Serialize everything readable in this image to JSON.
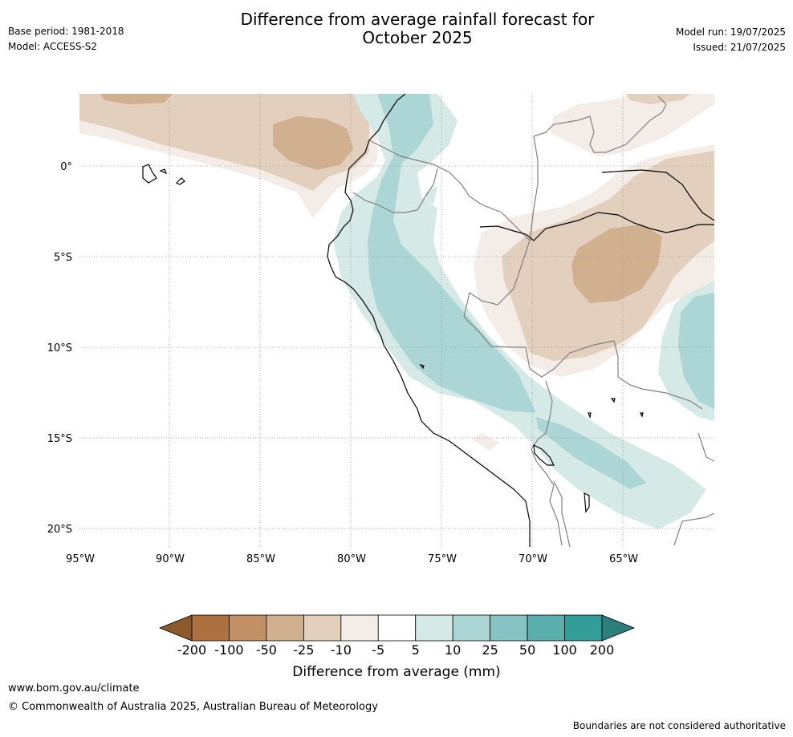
{
  "header": {
    "title_line1": "Difference from average rainfall forecast for",
    "title_line2": "October 2025",
    "base_period": "Base period: 1981-2018",
    "model": "Model: ACCESS-S2",
    "model_run": "Model run: 19/07/2025",
    "issued": "Issued: 21/07/2025"
  },
  "map": {
    "lat_labels": [
      "0°",
      "5°S",
      "10°S",
      "15°S",
      "20°S"
    ],
    "lon_labels": [
      "95°W",
      "90°W",
      "85°W",
      "80°W",
      "75°W",
      "70°W",
      "65°W"
    ],
    "grid": true,
    "colors": {
      "dry_10": "#f4ece6",
      "dry_25": "#e3cfbd",
      "dry_50": "#d1b090",
      "wet_5": "#d5e9e6",
      "wet_10": "#acd6d5",
      "coast": "#000000",
      "border": "#808080"
    }
  },
  "legend": {
    "labels": [
      "-200",
      "-100",
      "-50",
      "-25",
      "-10",
      "-5",
      "5",
      "10",
      "25",
      "50",
      "100",
      "200"
    ],
    "colors": [
      "#8a5a2b",
      "#ad713f",
      "#c19067",
      "#d1b090",
      "#e3cfbd",
      "#f4ece6",
      "#ffffff",
      "#d5e9e6",
      "#acd6d5",
      "#86c3c2",
      "#5aaeac",
      "#349d98",
      "#2d7f7b"
    ],
    "title": "Difference from average (mm)"
  },
  "footer": {
    "url": "www.bom.gov.au/climate",
    "copyright": "© Commonwealth of Australia 2025, Australian Bureau of Meteorology",
    "note": "Boundaries are not considered authoritative"
  }
}
